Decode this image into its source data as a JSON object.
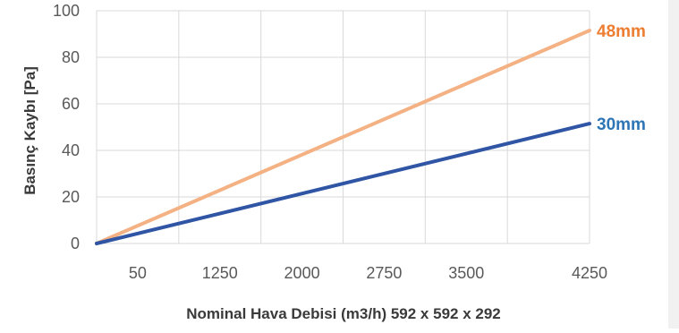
{
  "chart_data": {
    "type": "line",
    "title": "",
    "xlabel": "Nominal Hava Debisi (m3/h) 592 x 592 x 292",
    "ylabel": "Basınç Kaybı [Pa]",
    "categories": [
      "50",
      "1250",
      "2000",
      "2750",
      "3500",
      "4250"
    ],
    "y_ticks": [
      "0",
      "20",
      "40",
      "60",
      "80",
      "100"
    ],
    "ylim": [
      0,
      100
    ],
    "grid": true,
    "legend": "none",
    "series": [
      {
        "name": "48mm",
        "color": "#f4b183",
        "label_color": "#ed7d31",
        "start": 0,
        "end": 91.5
      },
      {
        "name": "30mm",
        "color": "#2f55a4",
        "label_color": "#2e75b6",
        "start": 0,
        "end": 51.5
      }
    ]
  },
  "colors": {
    "grid": "#d9d9d9",
    "background": "#ffffff",
    "scroll_strip": "#f1f1f1"
  }
}
